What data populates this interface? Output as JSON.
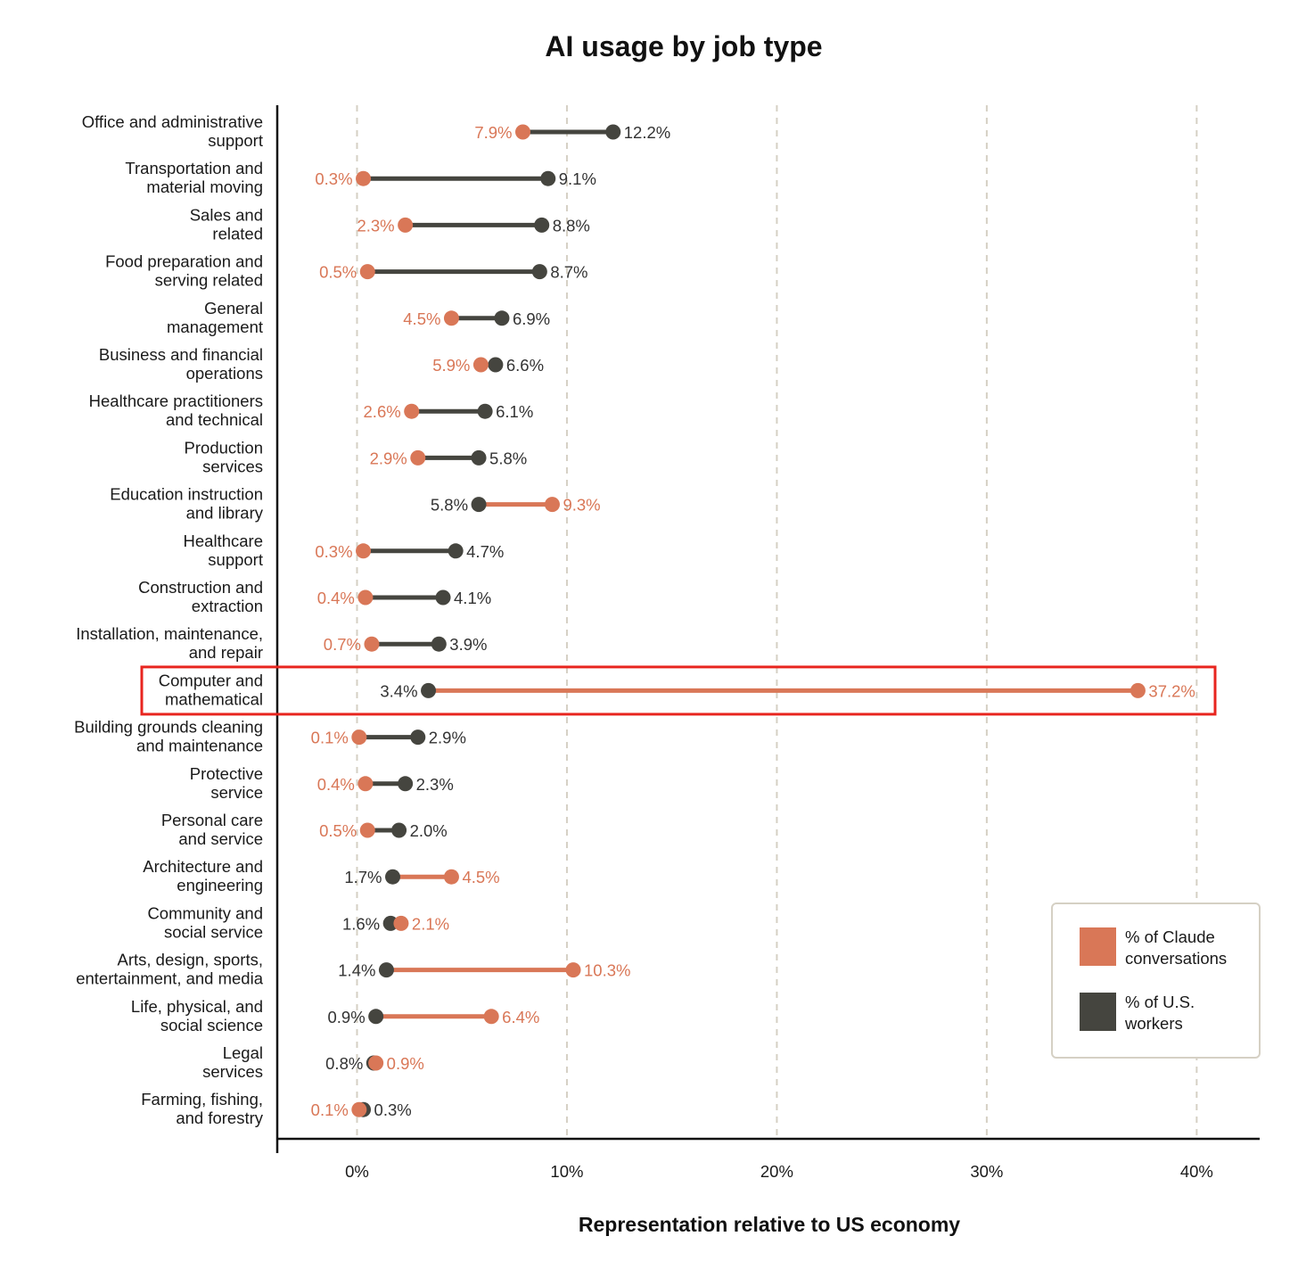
{
  "chart_data": {
    "type": "dumbbell",
    "title": "AI usage by job type",
    "xlabel": "Representation relative to US economy",
    "ylabel": "",
    "xlim": [
      -3.8,
      43
    ],
    "xticks": [
      0,
      10,
      20,
      30,
      40
    ],
    "xtick_labels": [
      "0%",
      "10%",
      "20%",
      "30%",
      "40%"
    ],
    "grid": "vertical dashed",
    "legend_position": "bottom-right",
    "colors": {
      "claude": "#D97757",
      "workers": "#45453F",
      "highlight": "#E8251F",
      "grid": "#D5D0C4"
    },
    "series": [
      {
        "key": "claude",
        "name_lines": [
          "% of Claude",
          "conversations"
        ]
      },
      {
        "key": "workers",
        "name_lines": [
          "% of U.S.",
          "workers"
        ]
      }
    ],
    "highlight_category_index": 12,
    "categories": [
      {
        "lines": [
          "Office and administrative",
          "support"
        ],
        "claude": 7.9,
        "workers": 12.2,
        "claude_label": "7.9%",
        "workers_label": "12.2%"
      },
      {
        "lines": [
          "Transportation and",
          "material moving"
        ],
        "claude": 0.3,
        "workers": 9.1,
        "claude_label": "0.3%",
        "workers_label": "9.1%"
      },
      {
        "lines": [
          "Sales and",
          "related"
        ],
        "claude": 2.3,
        "workers": 8.8,
        "claude_label": "2.3%",
        "workers_label": "8.8%"
      },
      {
        "lines": [
          "Food preparation and",
          "serving related"
        ],
        "claude": 0.5,
        "workers": 8.7,
        "claude_label": "0.5%",
        "workers_label": "8.7%"
      },
      {
        "lines": [
          "General",
          "management"
        ],
        "claude": 4.5,
        "workers": 6.9,
        "claude_label": "4.5%",
        "workers_label": "6.9%"
      },
      {
        "lines": [
          "Business and financial",
          "operations"
        ],
        "claude": 5.9,
        "workers": 6.6,
        "claude_label": "5.9%",
        "workers_label": "6.6%"
      },
      {
        "lines": [
          "Healthcare practitioners",
          "and technical"
        ],
        "claude": 2.6,
        "workers": 6.1,
        "claude_label": "2.6%",
        "workers_label": "6.1%"
      },
      {
        "lines": [
          "Production",
          "services"
        ],
        "claude": 2.9,
        "workers": 5.8,
        "claude_label": "2.9%",
        "workers_label": "5.8%"
      },
      {
        "lines": [
          "Education instruction",
          "and library"
        ],
        "claude": 9.3,
        "workers": 5.8,
        "claude_label": "9.3%",
        "workers_label": "5.8%"
      },
      {
        "lines": [
          "Healthcare",
          "support"
        ],
        "claude": 0.3,
        "workers": 4.7,
        "claude_label": "0.3%",
        "workers_label": "4.7%"
      },
      {
        "lines": [
          "Construction and",
          "extraction"
        ],
        "claude": 0.4,
        "workers": 4.1,
        "claude_label": "0.4%",
        "workers_label": "4.1%"
      },
      {
        "lines": [
          "Installation, maintenance,",
          "and repair"
        ],
        "claude": 0.7,
        "workers": 3.9,
        "claude_label": "0.7%",
        "workers_label": "3.9%"
      },
      {
        "lines": [
          "Computer and",
          "mathematical"
        ],
        "claude": 37.2,
        "workers": 3.4,
        "claude_label": "37.2%",
        "workers_label": "3.4%"
      },
      {
        "lines": [
          "Building grounds cleaning",
          "and maintenance"
        ],
        "claude": 0.1,
        "workers": 2.9,
        "claude_label": "0.1%",
        "workers_label": "2.9%"
      },
      {
        "lines": [
          "Protective",
          "service"
        ],
        "claude": 0.4,
        "workers": 2.3,
        "claude_label": "0.4%",
        "workers_label": "2.3%"
      },
      {
        "lines": [
          "Personal care",
          "and service"
        ],
        "claude": 0.5,
        "workers": 2.0,
        "claude_label": "0.5%",
        "workers_label": "2.0%"
      },
      {
        "lines": [
          "Architecture and",
          "engineering"
        ],
        "claude": 4.5,
        "workers": 1.7,
        "claude_label": "4.5%",
        "workers_label": "1.7%"
      },
      {
        "lines": [
          "Community and",
          "social service"
        ],
        "claude": 2.1,
        "workers": 1.6,
        "claude_label": "2.1%",
        "workers_label": "1.6%"
      },
      {
        "lines": [
          "Arts, design, sports,",
          "entertainment, and media"
        ],
        "claude": 10.3,
        "workers": 1.4,
        "claude_label": "10.3%",
        "workers_label": "1.4%"
      },
      {
        "lines": [
          "Life, physical, and",
          "social science"
        ],
        "claude": 6.4,
        "workers": 0.9,
        "claude_label": "6.4%",
        "workers_label": "0.9%"
      },
      {
        "lines": [
          "Legal",
          "services"
        ],
        "claude": 0.9,
        "workers": 0.8,
        "claude_label": "0.9%",
        "workers_label": "0.8%"
      },
      {
        "lines": [
          "Farming, fishing,",
          "and forestry"
        ],
        "claude": 0.1,
        "workers": 0.3,
        "claude_label": "0.1%",
        "workers_label": "0.3%"
      }
    ]
  }
}
